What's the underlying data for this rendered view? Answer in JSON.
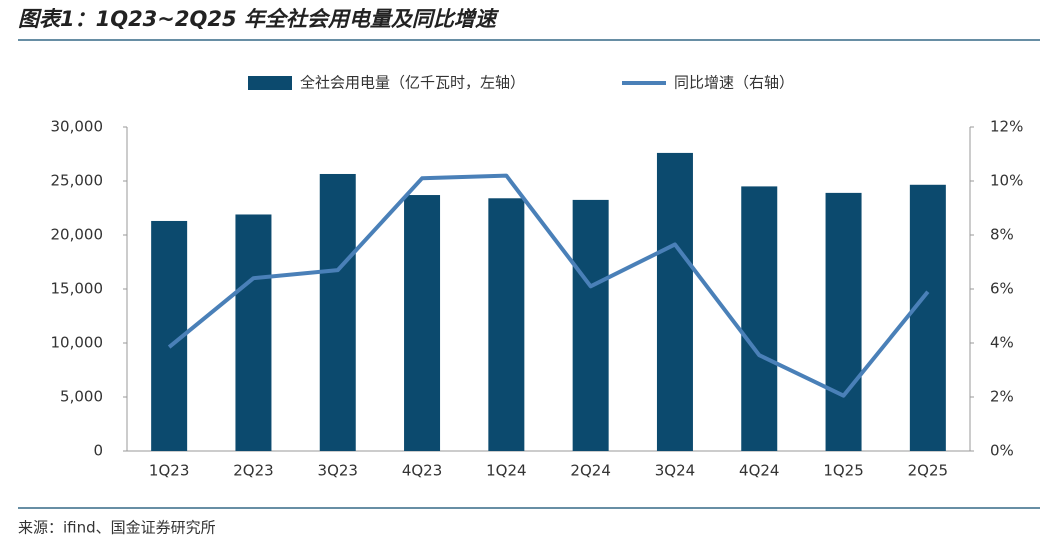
{
  "chart_data": {
    "type": "bar",
    "title": "图表1：1Q23~2Q25 年全社会用电量及同比增速",
    "source": "来源：ifind、国金证券研究所",
    "categories": [
      "1Q23",
      "2Q23",
      "3Q23",
      "4Q23",
      "1Q24",
      "2Q24",
      "3Q24",
      "4Q24",
      "1Q25",
      "2Q25"
    ],
    "series": [
      {
        "name": "全社会用电量（亿千瓦时，左轴）",
        "type": "bar",
        "color": "#0c4a6e",
        "values": [
          21300,
          21900,
          25650,
          23700,
          23400,
          23250,
          27600,
          24500,
          23900,
          24650
        ]
      },
      {
        "name": "同比增速（右轴）",
        "type": "line",
        "axis": "y2",
        "color": "#4a80b8",
        "values": [
          3.85,
          6.4,
          6.7,
          10.1,
          10.2,
          6.1,
          7.65,
          3.55,
          2.05,
          5.9
        ]
      }
    ],
    "ylim": [
      0,
      30000
    ],
    "yticks": [
      0,
      {
        "value": 5000,
        "label": "5,000"
      },
      {
        "value": 10000,
        "label": "10,000"
      },
      {
        "value": 15000,
        "label": "15,000"
      },
      {
        "value": 20000,
        "label": "20,000"
      },
      {
        "value": 25000,
        "label": "25,000"
      },
      {
        "value": 30000,
        "label": "30,000"
      }
    ],
    "y2lim": [
      0,
      12
    ],
    "y2ticks": [
      {
        "value": 0,
        "label": "0%"
      },
      {
        "value": 2,
        "label": "2%"
      },
      {
        "value": 4,
        "label": "4%"
      },
      {
        "value": 6,
        "label": "6%"
      },
      {
        "value": 8,
        "label": "8%"
      },
      {
        "value": 10,
        "label": "10%"
      },
      {
        "value": 12,
        "label": "12%"
      }
    ],
    "legend": "top",
    "grid": false
  }
}
